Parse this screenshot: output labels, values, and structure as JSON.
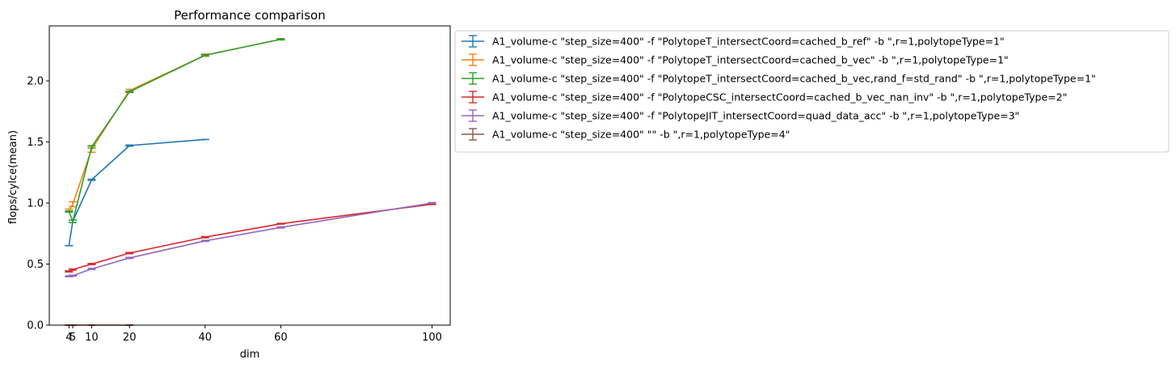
{
  "chart_data": {
    "type": "line",
    "title": "Performance comparison",
    "xlabel": "dim",
    "ylabel": "flops/cylce(mean)",
    "xlim": [
      -1.2,
      104.8
    ],
    "ylim": [
      0,
      2.45
    ],
    "xticks": [
      4,
      5,
      10,
      20,
      40,
      60,
      100
    ],
    "yticks": [
      0.0,
      0.5,
      1.0,
      1.5,
      2.0
    ],
    "ytick_labels": [
      "0.0",
      "0.5",
      "1.0",
      "1.5",
      "2.0"
    ],
    "grid": false,
    "legend_position": "outside-right-top",
    "error_bars": true,
    "series": [
      {
        "name": "A1_volume-c \"step_size=400\" -f \"PolytopeT_intersectCoord=cached_b_ref\" -b \",r=1,polytopeType=1\"",
        "color": "#1f77b4",
        "x": [
          4,
          5,
          10,
          20,
          40
        ],
        "y": [
          0.65,
          0.85,
          1.19,
          1.47,
          1.52
        ],
        "err": [
          0.0,
          0.01,
          0.005,
          0.005,
          0.0
        ]
      },
      {
        "name": "A1_volume-c \"step_size=400\" -f \"PolytopeT_intersectCoord=cached_b_vec\" -b \",r=1,polytopeType=1\"",
        "color": "#ff7f0e",
        "x": [
          4,
          5,
          10,
          20,
          40,
          60
        ],
        "y": [
          0.94,
          0.99,
          1.44,
          1.92,
          2.21,
          2.34
        ],
        "err": [
          0.01,
          0.02,
          0.025,
          0.01,
          0.01,
          0.005
        ]
      },
      {
        "name": "A1_volume-c \"step_size=400\" -f \"PolytopeT_intersectCoord=cached_b_vec,rand_f=std_rand\" -b \",r=1,polytopeType=1\"",
        "color": "#2ca02c",
        "x": [
          4,
          5,
          10,
          20,
          40,
          60
        ],
        "y": [
          0.93,
          0.85,
          1.46,
          1.91,
          2.21,
          2.34
        ],
        "err": [
          0.005,
          0.01,
          0.01,
          0.005,
          0.005,
          0.005
        ]
      },
      {
        "name": "A1_volume-c \"step_size=400\" -f \"PolytopeCSC_intersectCoord=cached_b_vec_nan_inv\" -b \",r=1,polytopeType=2\"",
        "color": "#d62728",
        "x": [
          4,
          5,
          10,
          20,
          40,
          60,
          100
        ],
        "y": [
          0.44,
          0.455,
          0.5,
          0.59,
          0.72,
          0.83,
          0.99
        ],
        "err": [
          0.005,
          0.005,
          0.005,
          0.005,
          0.005,
          0.003,
          0.003
        ]
      },
      {
        "name": "A1_volume-c \"step_size=400\" -f \"PolytopeJIT_intersectCoord=quad_data_acc\" -b \",r=1,polytopeType=3\"",
        "color": "#9467bd",
        "x": [
          4,
          5,
          10,
          20,
          40,
          60,
          100
        ],
        "y": [
          0.4,
          0.405,
          0.46,
          0.55,
          0.69,
          0.8,
          1.0
        ],
        "err": [
          0.004,
          0.004,
          0.005,
          0.005,
          0.005,
          0.005,
          0.004
        ]
      },
      {
        "name": "A1_volume-c \"step_size=400\"  \"\" -b \",r=1,polytopeType=4\"",
        "color": "#8c564b",
        "x": [
          4,
          5,
          10,
          20
        ],
        "y": [
          0.0,
          0.0,
          0.0,
          0.0
        ],
        "err": [
          0.002,
          0.002,
          0.002,
          0.002
        ]
      }
    ]
  }
}
